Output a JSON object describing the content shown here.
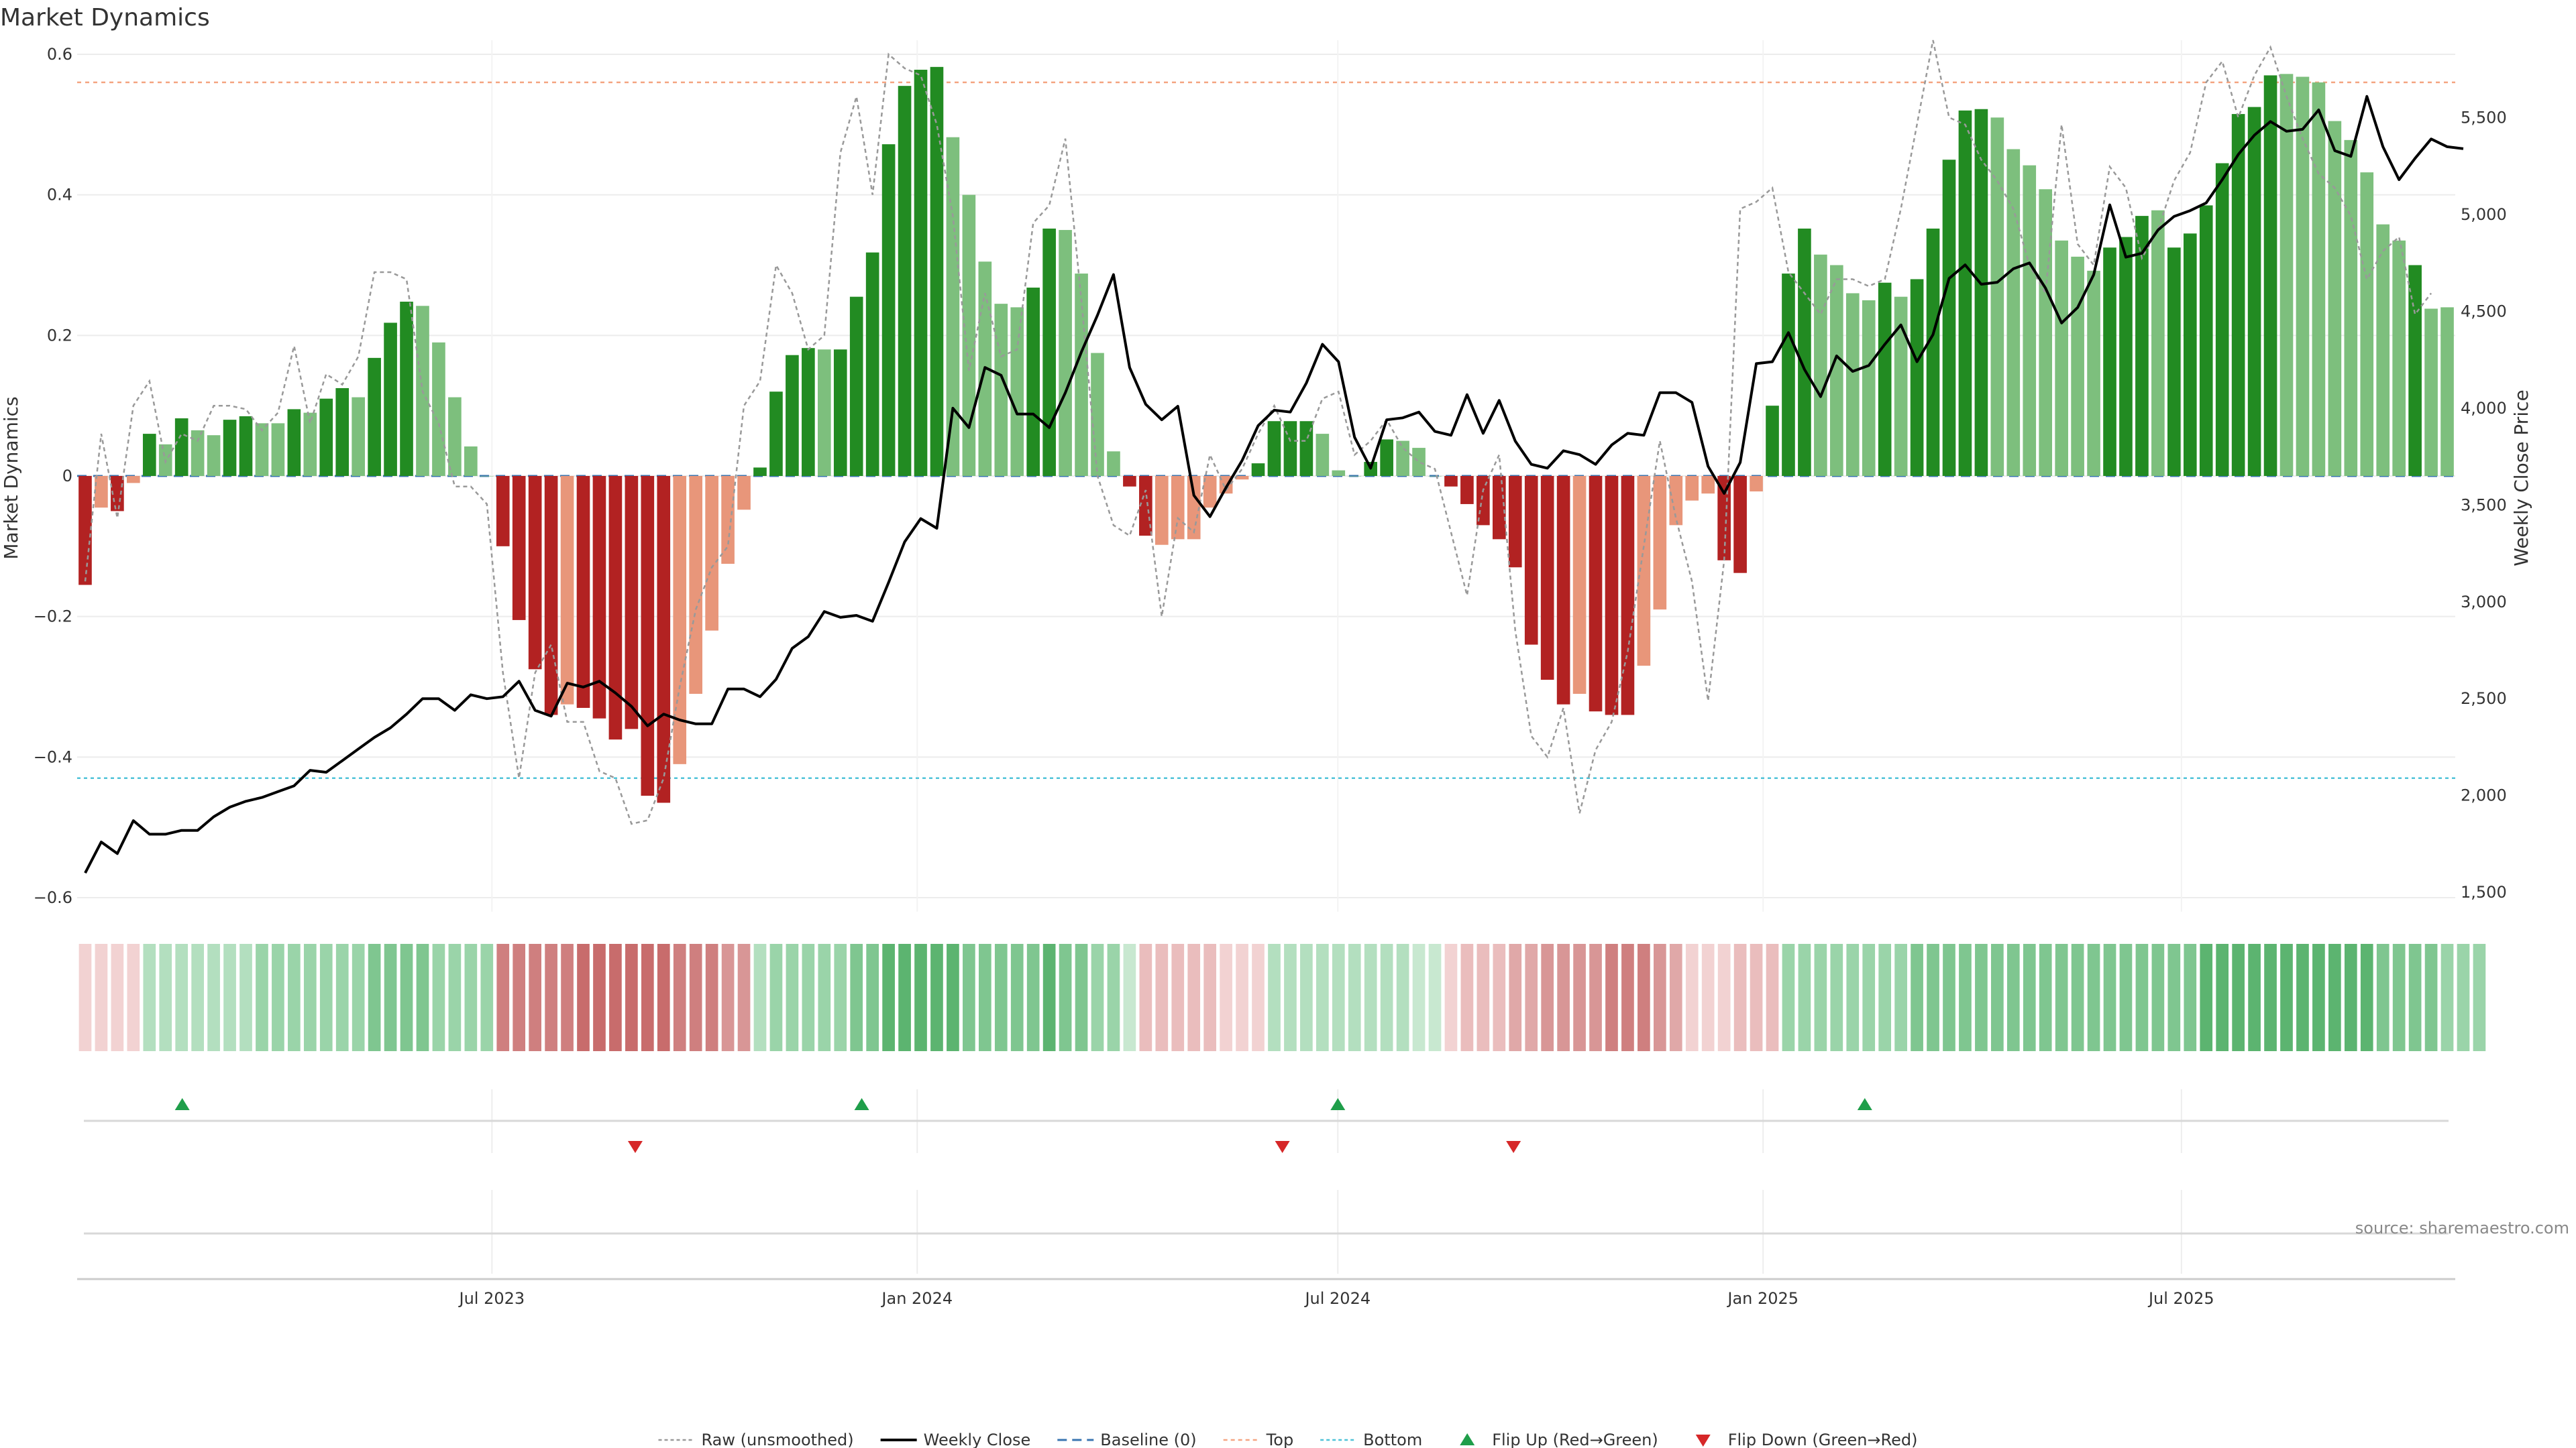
{
  "chart_data": {
    "type": "bar",
    "title": "Market Dynamics",
    "ylabel": "Market Dynamics",
    "y2label": "Weekly Close Price",
    "ylim": [
      -0.62,
      0.62
    ],
    "y2lim": [
      1400,
      5900
    ],
    "yticks": [
      {
        "v": 0.6,
        "label": "0.6"
      },
      {
        "v": 0.4,
        "label": "0.4"
      },
      {
        "v": 0.2,
        "label": "0.2"
      },
      {
        "v": 0,
        "label": "0"
      },
      {
        "v": -0.2,
        "label": "−0.2"
      },
      {
        "v": -0.4,
        "label": "−0.4"
      },
      {
        "v": -0.6,
        "label": "−0.6"
      }
    ],
    "y2ticks": [
      {
        "v": 5500,
        "label": "5,500"
      },
      {
        "v": 5000,
        "label": "5,000"
      },
      {
        "v": 4500,
        "label": "4,500"
      },
      {
        "v": 4000,
        "label": "4,000"
      },
      {
        "v": 3500,
        "label": "3,500"
      },
      {
        "v": 3000,
        "label": "3,000"
      },
      {
        "v": 2500,
        "label": "2,500"
      },
      {
        "v": 2000,
        "label": "2,000"
      },
      {
        "v": 1500,
        "label": "1,500"
      }
    ],
    "x_start": "2023-01-06",
    "x_end": "2025-10-24",
    "xticks": [
      {
        "date": "2023-07-01",
        "label": "Jul 2023"
      },
      {
        "date": "2024-01-01",
        "label": "Jan 2024"
      },
      {
        "date": "2024-07-01",
        "label": "Jul 2024"
      },
      {
        "date": "2025-01-01",
        "label": "Jan 2025"
      },
      {
        "date": "2025-07-01",
        "label": "Jul 2025"
      }
    ],
    "reference_lines": {
      "baseline": 0,
      "top": 0.56,
      "bottom": -0.43
    },
    "bar_values": [
      -0.155,
      -0.045,
      -0.05,
      -0.01,
      0.06,
      0.045,
      0.082,
      0.065,
      0.058,
      0.08,
      0.085,
      0.075,
      0.075,
      0.095,
      0.09,
      0.11,
      0.125,
      0.112,
      0.168,
      0.218,
      0.248,
      0.242,
      0.19,
      0.112,
      0.042,
      0.0,
      -0.1,
      -0.205,
      -0.275,
      -0.34,
      -0.325,
      -0.33,
      -0.345,
      -0.375,
      -0.36,
      -0.455,
      -0.465,
      -0.41,
      -0.31,
      -0.22,
      -0.125,
      -0.048,
      0.012,
      0.12,
      0.172,
      0.182,
      0.18,
      0.18,
      0.255,
      0.318,
      0.472,
      0.555,
      0.578,
      0.582,
      0.482,
      0.4,
      0.305,
      0.245,
      0.24,
      0.268,
      0.352,
      0.35,
      0.288,
      0.175,
      0.035,
      -0.015,
      -0.085,
      -0.098,
      -0.09,
      -0.09,
      -0.045,
      -0.025,
      -0.005,
      0.018,
      0.078,
      0.078,
      0.078,
      0.06,
      0.008,
      0.0,
      0.02,
      0.052,
      0.05,
      0.04,
      0.0,
      -0.015,
      -0.04,
      -0.07,
      -0.09,
      -0.13,
      -0.24,
      -0.29,
      -0.325,
      -0.31,
      -0.335,
      -0.34,
      -0.34,
      -0.27,
      -0.19,
      -0.07,
      -0.035,
      -0.025,
      -0.12,
      -0.138,
      -0.022,
      0.1,
      0.288,
      0.352,
      0.315,
      0.3,
      0.26,
      0.25,
      0.275,
      0.255,
      0.28,
      0.352,
      0.45,
      0.52,
      0.522,
      0.51,
      0.465,
      0.442,
      0.408,
      0.335,
      0.312,
      0.292,
      0.325,
      0.34,
      0.37,
      0.378,
      0.325,
      0.345,
      0.385,
      0.445,
      0.515,
      0.525,
      0.57,
      0.572,
      0.568,
      0.56,
      0.505,
      0.478,
      0.432,
      0.358,
      0.335,
      0.3,
      0.238,
      0.24
    ],
    "bar_intensity": [
      2,
      1,
      2,
      1,
      2,
      1,
      2,
      1,
      1,
      2,
      2,
      1,
      1,
      2,
      1,
      2,
      2,
      1,
      2,
      2,
      2,
      1,
      1,
      1,
      1,
      0,
      2,
      2,
      2,
      2,
      1,
      2,
      2,
      2,
      2,
      2,
      2,
      1,
      1,
      1,
      1,
      1,
      2,
      2,
      2,
      2,
      1,
      2,
      2,
      2,
      2,
      2,
      2,
      2,
      1,
      1,
      1,
      1,
      1,
      2,
      2,
      1,
      1,
      1,
      1,
      2,
      2,
      1,
      1,
      1,
      1,
      1,
      1,
      2,
      2,
      2,
      2,
      1,
      1,
      1,
      2,
      2,
      1,
      1,
      0,
      2,
      2,
      2,
      2,
      2,
      2,
      2,
      2,
      1,
      2,
      2,
      2,
      1,
      1,
      1,
      1,
      1,
      2,
      2,
      1,
      2,
      2,
      2,
      1,
      1,
      1,
      1,
      2,
      1,
      2,
      2,
      2,
      2,
      2,
      1,
      1,
      1,
      1,
      1,
      1,
      1,
      2,
      2,
      2,
      1,
      2,
      2,
      2,
      2,
      2,
      2,
      2,
      1,
      1,
      1,
      1,
      1,
      1,
      1,
      1,
      2
    ],
    "raw_values": [
      -0.15,
      0.06,
      -0.06,
      0.1,
      0.135,
      0.02,
      0.06,
      0.05,
      0.1,
      0.1,
      0.095,
      0.065,
      0.09,
      0.185,
      0.075,
      0.145,
      0.13,
      0.17,
      0.29,
      0.29,
      0.28,
      0.12,
      0.075,
      -0.015,
      -0.015,
      -0.04,
      -0.28,
      -0.43,
      -0.28,
      -0.24,
      -0.35,
      -0.35,
      -0.42,
      -0.43,
      -0.495,
      -0.49,
      -0.43,
      -0.3,
      -0.19,
      -0.13,
      -0.1,
      0.1,
      0.135,
      0.3,
      0.26,
      0.18,
      0.2,
      0.46,
      0.54,
      0.4,
      0.6,
      0.58,
      0.57,
      0.5,
      0.37,
      0.15,
      0.26,
      0.17,
      0.18,
      0.36,
      0.385,
      0.48,
      0.25,
      0.0,
      -0.07,
      -0.085,
      -0.02,
      -0.2,
      -0.06,
      -0.08,
      0.03,
      -0.02,
      0.01,
      0.06,
      0.1,
      0.05,
      0.05,
      0.11,
      0.12,
      0.03,
      0.05,
      0.08,
      0.04,
      0.02,
      0.01,
      -0.08,
      -0.17,
      -0.02,
      0.03,
      -0.22,
      -0.37,
      -0.4,
      -0.33,
      -0.48,
      -0.39,
      -0.35,
      -0.25,
      -0.1,
      0.05,
      -0.06,
      -0.15,
      -0.32,
      -0.12,
      0.38,
      0.39,
      0.41,
      0.29,
      0.26,
      0.23,
      0.28,
      0.28,
      0.27,
      0.28,
      0.38,
      0.5,
      0.62,
      0.51,
      0.5,
      0.45,
      0.42,
      0.38,
      0.3,
      0.26,
      0.5,
      0.33,
      0.3,
      0.44,
      0.41,
      0.31,
      0.35,
      0.42,
      0.46,
      0.56,
      0.59,
      0.51,
      0.57,
      0.61,
      0.54,
      0.48,
      0.43,
      0.41,
      0.37,
      0.28,
      0.32,
      0.34,
      0.23,
      0.26
    ],
    "close_values": [
      1600,
      1760,
      1700,
      1870,
      1800,
      1800,
      1820,
      1820,
      1890,
      1940,
      1970,
      1990,
      2020,
      2050,
      2130,
      2120,
      2180,
      2240,
      2300,
      2350,
      2420,
      2500,
      2500,
      2440,
      2520,
      2500,
      2510,
      2590,
      2440,
      2410,
      2580,
      2560,
      2590,
      2530,
      2460,
      2360,
      2420,
      2390,
      2370,
      2370,
      2550,
      2550,
      2510,
      2600,
      2760,
      2820,
      2950,
      2920,
      2930,
      2900,
      3100,
      3310,
      3430,
      3380,
      4000,
      3900,
      4210,
      4170,
      3970,
      3970,
      3900,
      4080,
      4290,
      4480,
      4690,
      4210,
      4020,
      3940,
      4010,
      3550,
      3440,
      3590,
      3730,
      3910,
      3990,
      3980,
      4130,
      4330,
      4240,
      3850,
      3690,
      3940,
      3950,
      3980,
      3880,
      3860,
      4070,
      3870,
      4040,
      3830,
      3710,
      3690,
      3780,
      3760,
      3710,
      3810,
      3870,
      3860,
      4080,
      4080,
      4030,
      3700,
      3560,
      3720,
      4230,
      4240,
      4390,
      4200,
      4060,
      4270,
      4190,
      4220,
      4330,
      4430,
      4240,
      4380,
      4670,
      4740,
      4640,
      4650,
      4720,
      4750,
      4620,
      4440,
      4520,
      4690,
      5050,
      4780,
      4800,
      4920,
      4990,
      5020,
      5060,
      5180,
      5310,
      5410,
      5480,
      5430,
      5440,
      5540,
      5330,
      5300,
      5610,
      5350,
      5180,
      5290,
      5390,
      5350,
      5340
    ],
    "regime_shades": [
      1,
      1,
      1,
      1,
      2,
      2,
      2,
      2,
      2,
      2,
      2,
      3,
      3,
      3,
      3,
      3,
      3,
      3,
      4,
      4,
      4,
      4,
      3,
      3,
      3,
      3,
      5,
      5,
      5,
      5,
      5,
      6,
      6,
      6,
      6,
      6,
      6,
      5,
      5,
      5,
      4,
      4,
      2,
      3,
      3,
      3,
      3,
      3,
      4,
      4,
      5,
      5,
      5,
      5,
      5,
      4,
      4,
      4,
      4,
      4,
      5,
      4,
      4,
      3,
      3,
      1,
      2,
      2,
      2,
      2,
      2,
      1,
      1,
      1,
      2,
      2,
      2,
      2,
      2,
      2,
      2,
      2,
      2,
      1,
      1,
      1,
      2,
      2,
      2,
      3,
      3,
      4,
      4,
      4,
      4,
      5,
      5,
      5,
      4,
      3,
      1,
      1,
      1,
      2,
      2,
      2,
      3,
      3,
      3,
      3,
      3,
      3,
      3,
      3,
      4,
      4,
      4,
      4,
      4,
      4,
      4,
      4,
      4,
      4,
      4,
      4,
      4,
      4,
      4,
      4,
      4,
      4,
      5,
      5,
      5,
      5,
      5,
      5,
      5,
      5,
      5,
      5,
      5,
      4,
      4,
      4,
      4,
      3,
      3,
      3
    ],
    "regime_colors": {
      "green": [
        "#c8e8d0",
        "#b3dfbf",
        "#9ad4a9",
        "#7fc690",
        "#5cb470",
        "#3ea050"
      ],
      "red": [
        "#f2d2d2",
        "#eabdbd",
        "#e0a8a8",
        "#d89696",
        "#cf7f7f",
        "#c86c6c"
      ]
    },
    "regime_sides": [
      "red",
      "green",
      "red",
      "green",
      "red",
      "green",
      "red",
      "green"
    ],
    "regime_breaks": [
      0,
      4,
      26,
      42,
      66,
      74,
      85,
      106,
      148
    ],
    "flip_up_dates": [
      "2023-02-17",
      "2023-12-08",
      "2024-07-01",
      "2025-02-14"
    ],
    "flip_down_dates": [
      "2023-09-01",
      "2024-06-07",
      "2024-09-15"
    ],
    "colors": {
      "bar_pos_strong": "#228b22",
      "bar_pos_light": "#7dbf7d",
      "bar_neg_strong": "#b22222",
      "bar_neg_light": "#e8967a",
      "close": "#000000",
      "raw": "#999999",
      "baseline": "#3a75b0",
      "top": "#f4a582",
      "bottom": "#4fc3d8",
      "flip_up": "#1f9e4a",
      "flip_down": "#d62728"
    },
    "legend": [
      {
        "label": "Raw (unsmoothed)",
        "kind": "raw"
      },
      {
        "label": "Weekly Close",
        "kind": "close"
      },
      {
        "label": "Baseline (0)",
        "kind": "baseline"
      },
      {
        "label": "Top",
        "kind": "top"
      },
      {
        "label": "Bottom",
        "kind": "bottom"
      },
      {
        "label": "Flip Up (Red→Green)",
        "kind": "flip_up"
      },
      {
        "label": "Flip Down (Green→Red)",
        "kind": "flip_down"
      }
    ],
    "legend_position": "bottom-center",
    "grid": true,
    "source": "source: sharemaestro.com"
  }
}
